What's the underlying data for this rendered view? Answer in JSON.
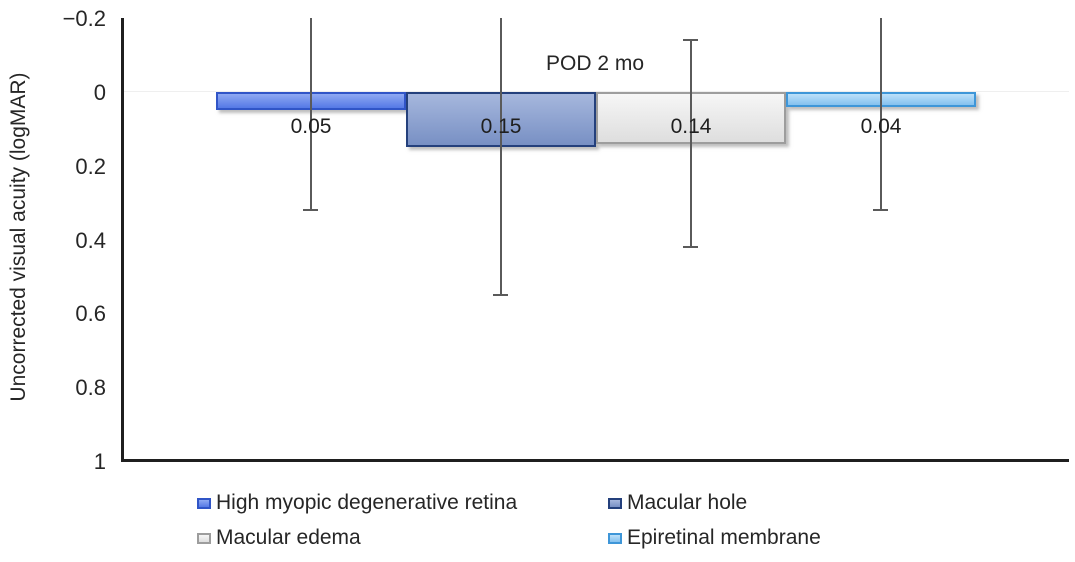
{
  "chart_data": {
    "type": "bar",
    "title": "POD 2 mo",
    "ylabel": "Uncorrected visual acuity (logMAR)",
    "xlabel": "",
    "ylim": [
      -0.2,
      1.0
    ],
    "y_axis_inverted_display": "negative values at top, bars hang downward from 0",
    "yticks": [
      -0.2,
      0,
      0.2,
      0.4,
      0.6,
      0.8,
      1
    ],
    "ytick_labels": [
      "−0.2",
      "0",
      "0.2",
      "0.4",
      "0.6",
      "0.8",
      "1"
    ],
    "grid": "faint horizontal line at 0 only",
    "legend_position": "bottom, two columns",
    "series": [
      {
        "name": "High myopic degenerative retina",
        "value": 0.05,
        "label": "0.05",
        "error_bottom": 0.32,
        "error_top": -0.2,
        "error_top_clipped": true,
        "color_light": "#8fa9f2",
        "color_main": "#5579e6",
        "color_border": "#3055c7"
      },
      {
        "name": "Macular hole",
        "value": 0.15,
        "label": "0.15",
        "error_bottom": 0.55,
        "error_top": -0.2,
        "error_top_clipped": true,
        "color_light": "#a6b7dd",
        "color_main": "#7890c4",
        "color_border": "#24407c"
      },
      {
        "name": "Macular edema",
        "value": 0.14,
        "label": "0.14",
        "error_bottom": 0.42,
        "error_top": -0.14,
        "error_top_clipped": false,
        "color_light": "#f6f6f6",
        "color_main": "#dedede",
        "color_border": "#9d9d9d"
      },
      {
        "name": "Epiretinal membrane",
        "value": 0.04,
        "label": "0.04",
        "error_bottom": 0.32,
        "error_top": -0.2,
        "error_top_clipped": true,
        "color_light": "#bde0f9",
        "color_main": "#84c1ef",
        "color_border": "#3e96d8"
      }
    ]
  },
  "colors": {
    "axis_line": "#1f1f1f",
    "error_bar": "#5a5a5a",
    "text": "#262626",
    "zero_gridline": "#efefef",
    "background": "#ffffff"
  }
}
